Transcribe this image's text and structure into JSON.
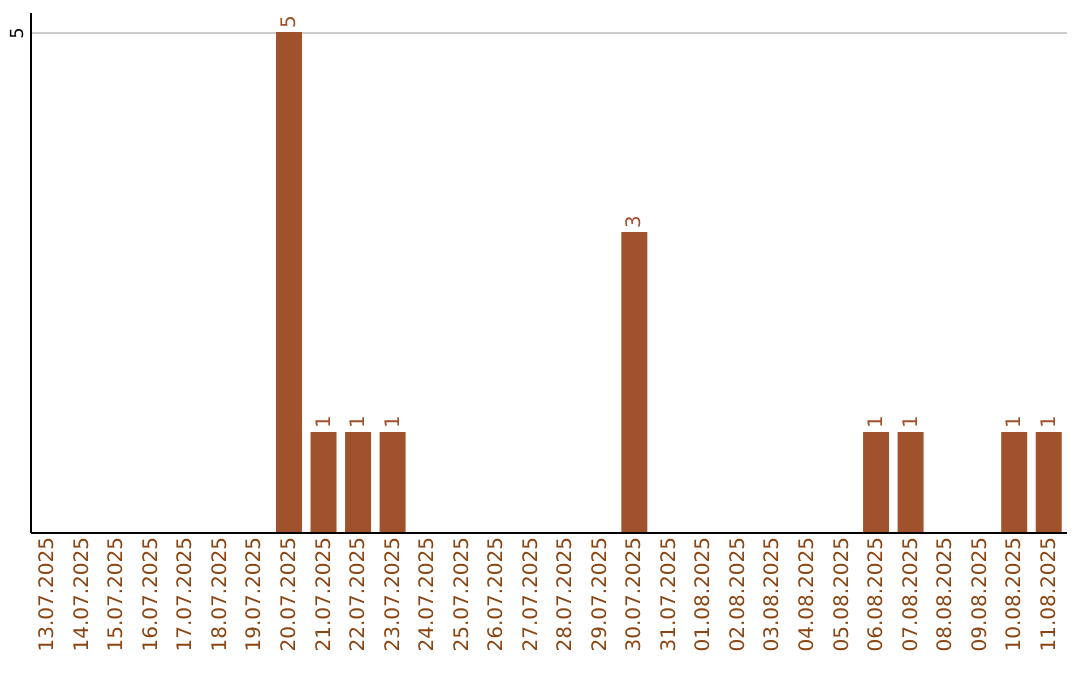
{
  "chart_data": {
    "type": "bar",
    "categories": [
      "13.07.2025",
      "14.07.2025",
      "15.07.2025",
      "16.07.2025",
      "17.07.2025",
      "18.07.2025",
      "19.07.2025",
      "20.07.2025",
      "21.07.2025",
      "22.07.2025",
      "23.07.2025",
      "24.07.2025",
      "25.07.2025",
      "26.07.2025",
      "27.07.2025",
      "28.07.2025",
      "29.07.2025",
      "30.07.2025",
      "31.07.2025",
      "01.08.2025",
      "02.08.2025",
      "03.08.2025",
      "04.08.2025",
      "05.08.2025",
      "06.08.2025",
      "07.08.2025",
      "08.08.2025",
      "09.08.2025",
      "10.08.2025",
      "11.08.2025"
    ],
    "values": [
      0,
      0,
      0,
      0,
      0,
      0,
      0,
      5,
      1,
      1,
      1,
      0,
      0,
      0,
      0,
      0,
      0,
      3,
      0,
      0,
      0,
      0,
      0,
      0,
      1,
      1,
      0,
      0,
      1,
      1
    ],
    "value_labels": [
      null,
      null,
      null,
      null,
      null,
      null,
      null,
      "5",
      "1",
      "1",
      "1",
      null,
      null,
      null,
      null,
      null,
      null,
      "3",
      null,
      null,
      null,
      null,
      null,
      null,
      "1",
      "1",
      null,
      null,
      "1",
      "1"
    ],
    "color": "#a0522d",
    "ylim": [
      0,
      5.2
    ],
    "yticks": [
      5
    ],
    "grid": "y"
  }
}
